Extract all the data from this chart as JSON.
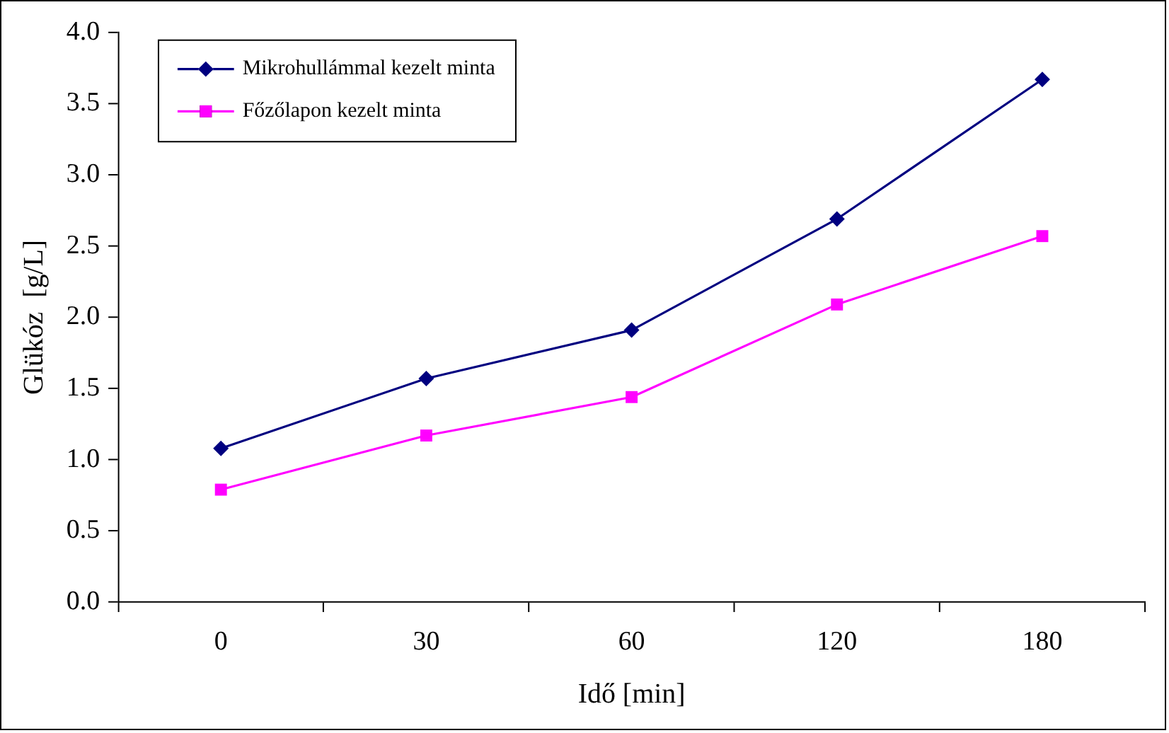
{
  "chart_data": {
    "type": "line",
    "xlabel": "Idő [min]",
    "ylabel": "Glükóz  [g/L]",
    "categories": [
      "0",
      "30",
      "60",
      "120",
      "180"
    ],
    "series": [
      {
        "name": "Mikrohullámmal kezelt minta",
        "color": "#000080",
        "marker": "diamond",
        "values": [
          1.08,
          1.57,
          1.91,
          2.69,
          3.67
        ]
      },
      {
        "name": "Főzőlapon kezelt minta",
        "color": "#ff00ff",
        "marker": "square",
        "values": [
          0.79,
          1.17,
          1.44,
          2.09,
          2.57
        ]
      }
    ],
    "ylim": [
      0,
      4
    ],
    "yticks": [
      {
        "value": 0,
        "label": "0.0"
      },
      {
        "value": 0.5,
        "label": "0.5"
      },
      {
        "value": 1,
        "label": "1.0"
      },
      {
        "value": 1.5,
        "label": "1.5"
      },
      {
        "value": 2,
        "label": "2.0"
      },
      {
        "value": 2.5,
        "label": "2.5"
      },
      {
        "value": 3,
        "label": "3.0"
      },
      {
        "value": 3.5,
        "label": "3.5"
      },
      {
        "value": 4,
        "label": "4.0"
      }
    ],
    "grid": false,
    "legend": "top left",
    "line_style": "solid"
  }
}
